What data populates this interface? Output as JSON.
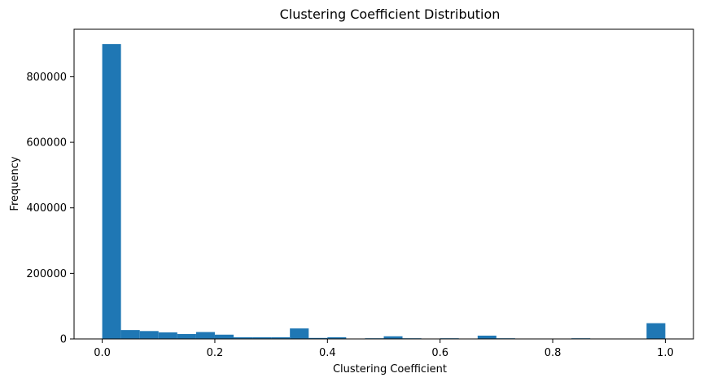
{
  "chart_data": {
    "type": "bar",
    "title": "Clustering Coefficient Distribution",
    "xlabel": "Clustering Coefficient",
    "ylabel": "Frequency",
    "xlim": [
      -0.05,
      1.05
    ],
    "ylim": [
      0,
      945000
    ],
    "xticks": [
      0.0,
      0.2,
      0.4,
      0.6,
      0.8,
      1.0
    ],
    "xtick_labels": [
      "0.0",
      "0.2",
      "0.4",
      "0.6",
      "0.8",
      "1.0"
    ],
    "yticks": [
      0,
      200000,
      400000,
      600000,
      800000
    ],
    "ytick_labels": [
      "0",
      "200000",
      "400000",
      "600000",
      "800000"
    ],
    "bin_edges": [
      0.0,
      0.0333,
      0.0667,
      0.1,
      0.1333,
      0.1667,
      0.2,
      0.2333,
      0.2667,
      0.3,
      0.3333,
      0.3667,
      0.4,
      0.4333,
      0.4667,
      0.5,
      0.5333,
      0.5667,
      0.6,
      0.6333,
      0.6667,
      0.7,
      0.7333,
      0.7667,
      0.8,
      0.8333,
      0.8667,
      0.9,
      0.9333,
      0.9667,
      1.0
    ],
    "values": [
      900000,
      27000,
      24000,
      20000,
      15000,
      21000,
      13000,
      5000,
      5000,
      5000,
      32000,
      3000,
      5000,
      1000,
      2000,
      8000,
      2000,
      1000,
      2000,
      1000,
      10000,
      2000,
      1000,
      1000,
      1000,
      2000,
      1000,
      1000,
      1000,
      48000
    ],
    "bar_color": "#1f77b4",
    "grid": false
  }
}
